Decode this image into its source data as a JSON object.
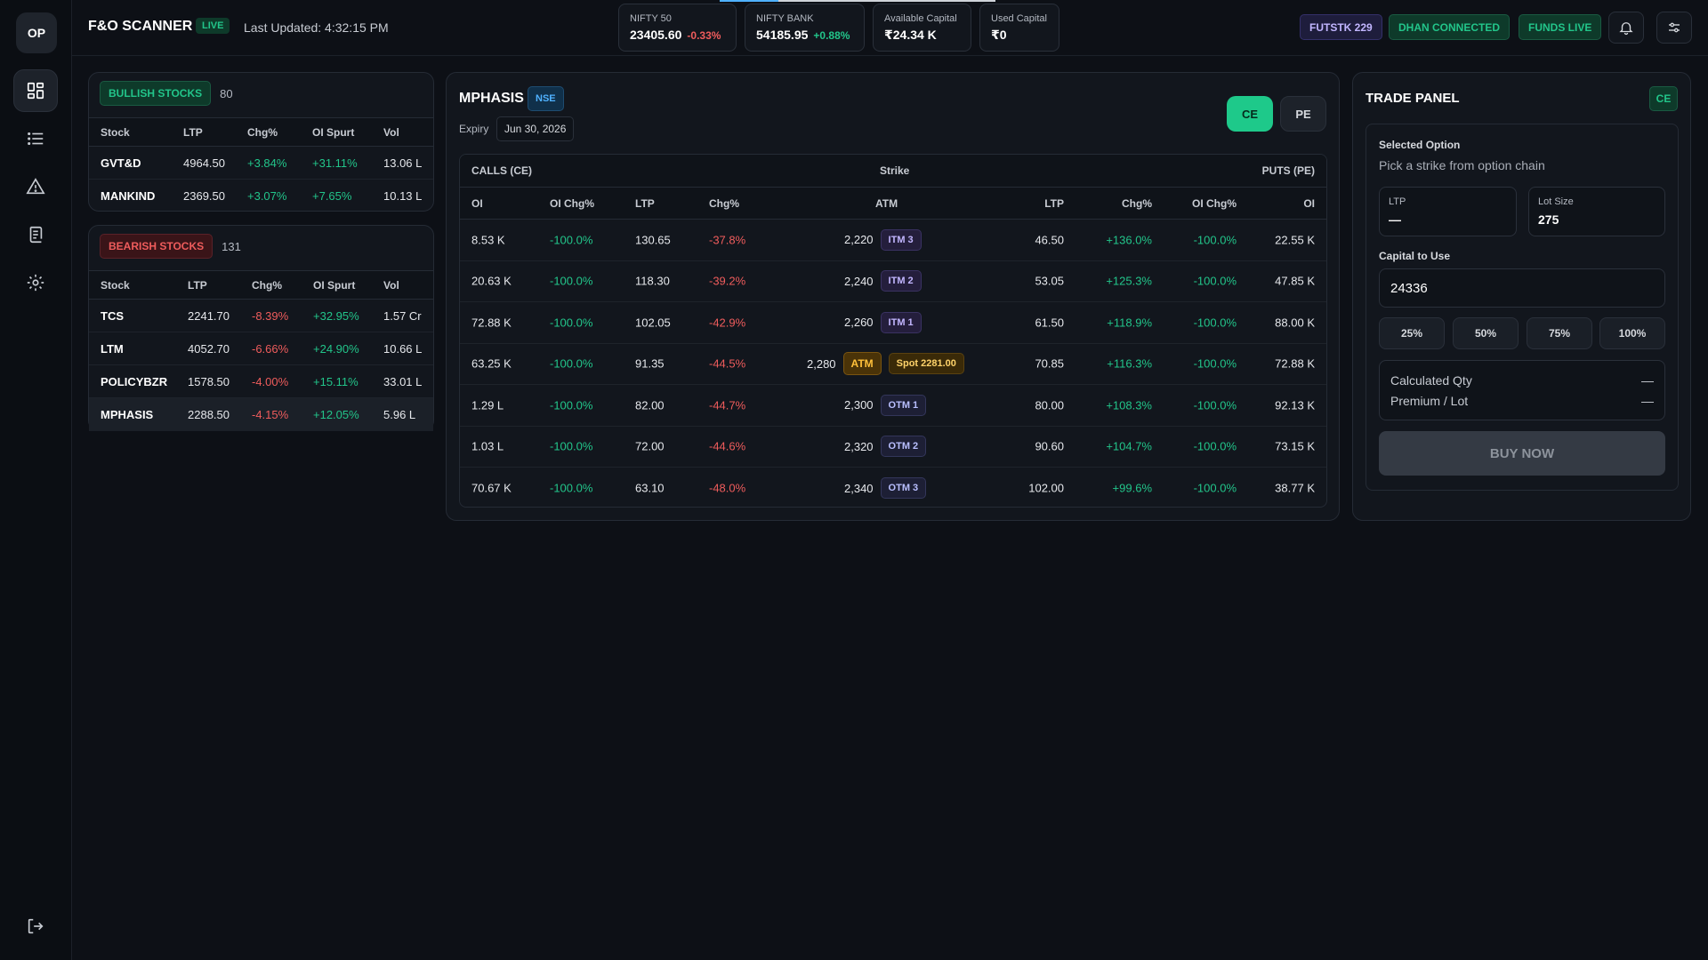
{
  "sidebar": {
    "logo": "OP",
    "items": [
      {
        "icon": "dashboard-icon",
        "active": true
      },
      {
        "icon": "list-icon",
        "active": false
      },
      {
        "icon": "alert-triangle-icon",
        "active": false
      },
      {
        "icon": "orders-icon",
        "active": false
      },
      {
        "icon": "gear-icon",
        "active": false
      }
    ],
    "logout_icon": "logout-icon"
  },
  "header": {
    "title": "F&O SCANNER",
    "live": "LIVE",
    "last_updated": "Last Updated: 4:32:15 PM",
    "tickers": [
      {
        "label": "NIFTY 50",
        "value": "23405.60",
        "change": "-0.33%",
        "direction": "down"
      },
      {
        "label": "NIFTY BANK",
        "value": "54185.95",
        "change": "+0.88%",
        "direction": "up"
      },
      {
        "label": "Available Capital",
        "value": "₹24.34 K"
      },
      {
        "label": "Used Capital",
        "value": "₹0"
      }
    ],
    "badges": {
      "futstk": "FUTSTK 229",
      "dhan": "DHAN CONNECTED",
      "funds": "FUNDS LIVE"
    },
    "bell_icon": "bell-icon",
    "settings_icon": "sliders-icon"
  },
  "bullish": {
    "title": "BULLISH STOCKS",
    "count": "80",
    "columns": [
      "Stock",
      "LTP",
      "Chg%",
      "OI Spurt",
      "Vol"
    ],
    "rows": [
      {
        "stock": "GVT&D",
        "ltp": "4964.50",
        "chg": "+3.84%",
        "oi": "+31.11%",
        "vol": "13.06 L"
      },
      {
        "stock": "MANKIND",
        "ltp": "2369.50",
        "chg": "+3.07%",
        "oi": "+7.65%",
        "vol": "10.13 L"
      }
    ]
  },
  "bearish": {
    "title": "BEARISH STOCKS",
    "count": "131",
    "columns": [
      "Stock",
      "LTP",
      "Chg%",
      "OI Spurt",
      "Vol"
    ],
    "rows": [
      {
        "stock": "TCS",
        "ltp": "2241.70",
        "chg": "-8.39%",
        "oi": "+32.95%",
        "vol": "1.57 Cr"
      },
      {
        "stock": "LTM",
        "ltp": "4052.70",
        "chg": "-6.66%",
        "oi": "+24.90%",
        "vol": "10.66 L"
      },
      {
        "stock": "POLICYBZR",
        "ltp": "1578.50",
        "chg": "-4.00%",
        "oi": "+15.11%",
        "vol": "33.01 L"
      },
      {
        "stock": "MPHASIS",
        "ltp": "2288.50",
        "chg": "-4.15%",
        "oi": "+12.05%",
        "vol": "5.96 L",
        "selected": true
      }
    ]
  },
  "chain": {
    "symbol": "MPHASIS",
    "exchange": "NSE",
    "expiry_label": "Expiry",
    "expiry": "Jun 30, 2026",
    "ce_label": "CE",
    "pe_label": "PE",
    "band": {
      "calls": "CALLS (CE)",
      "strike": "Strike",
      "puts": "PUTS (PE)"
    },
    "columns": {
      "oi": "OI",
      "oi_chg": "OI Chg%",
      "ltp": "LTP",
      "chg": "Chg%",
      "atm": "ATM",
      "p_ltp": "LTP",
      "p_chg": "Chg%",
      "p_oi_chg": "OI Chg%",
      "p_oi": "OI"
    },
    "rows": [
      {
        "c_oi": "8.53 K",
        "c_oi_chg": "-100.0%",
        "c_ltp": "130.65",
        "c_chg": "-37.8%",
        "strike": "2,220",
        "tag": "ITM 3",
        "tag_type": "itm",
        "p_ltp": "46.50",
        "p_chg": "+136.0%",
        "p_oi_chg": "-100.0%",
        "p_oi": "22.55 K"
      },
      {
        "c_oi": "20.63 K",
        "c_oi_chg": "-100.0%",
        "c_ltp": "118.30",
        "c_chg": "-39.2%",
        "strike": "2,240",
        "tag": "ITM 2",
        "tag_type": "itm",
        "p_ltp": "53.05",
        "p_chg": "+125.3%",
        "p_oi_chg": "-100.0%",
        "p_oi": "47.85 K"
      },
      {
        "c_oi": "72.88 K",
        "c_oi_chg": "-100.0%",
        "c_ltp": "102.05",
        "c_chg": "-42.9%",
        "strike": "2,260",
        "tag": "ITM 1",
        "tag_type": "itm",
        "p_ltp": "61.50",
        "p_chg": "+118.9%",
        "p_oi_chg": "-100.0%",
        "p_oi": "88.00 K"
      },
      {
        "c_oi": "63.25 K",
        "c_oi_chg": "-100.0%",
        "c_ltp": "91.35",
        "c_chg": "-44.5%",
        "strike": "2,280",
        "tag": "ATM",
        "tag_type": "atm",
        "spot": "Spot 2281.00",
        "p_ltp": "70.85",
        "p_chg": "+116.3%",
        "p_oi_chg": "-100.0%",
        "p_oi": "72.88 K"
      },
      {
        "c_oi": "1.29 L",
        "c_oi_chg": "-100.0%",
        "c_ltp": "82.00",
        "c_chg": "-44.7%",
        "strike": "2,300",
        "tag": "OTM 1",
        "tag_type": "otm",
        "p_ltp": "80.00",
        "p_chg": "+108.3%",
        "p_oi_chg": "-100.0%",
        "p_oi": "92.13 K"
      },
      {
        "c_oi": "1.03 L",
        "c_oi_chg": "-100.0%",
        "c_ltp": "72.00",
        "c_chg": "-44.6%",
        "strike": "2,320",
        "tag": "OTM 2",
        "tag_type": "otm",
        "p_ltp": "90.60",
        "p_chg": "+104.7%",
        "p_oi_chg": "-100.0%",
        "p_oi": "73.15 K"
      },
      {
        "c_oi": "70.67 K",
        "c_oi_chg": "-100.0%",
        "c_ltp": "63.10",
        "c_chg": "-48.0%",
        "strike": "2,340",
        "tag": "OTM 3",
        "tag_type": "otm",
        "p_ltp": "102.00",
        "p_chg": "+99.6%",
        "p_oi_chg": "-100.0%",
        "p_oi": "38.77 K"
      }
    ]
  },
  "trade": {
    "title": "TRADE PANEL",
    "type_badge": "CE",
    "selected_label": "Selected Option",
    "selected_hint": "Pick a strike from option chain",
    "ltp_label": "LTP",
    "ltp_value": "—",
    "lot_label": "Lot Size",
    "lot_value": "275",
    "capital_label": "Capital to Use",
    "capital_value": "24336",
    "pct_buttons": [
      "25%",
      "50%",
      "75%",
      "100%"
    ],
    "calc_qty_label": "Calculated Qty",
    "calc_qty_value": "—",
    "premium_label": "Premium / Lot",
    "premium_value": "—",
    "buy_label": "BUY NOW"
  },
  "colors": {
    "green": "#22c58a",
    "red": "#ef5c5c",
    "accent_ce": "#1ec98a",
    "atm": "#ffc03a"
  }
}
